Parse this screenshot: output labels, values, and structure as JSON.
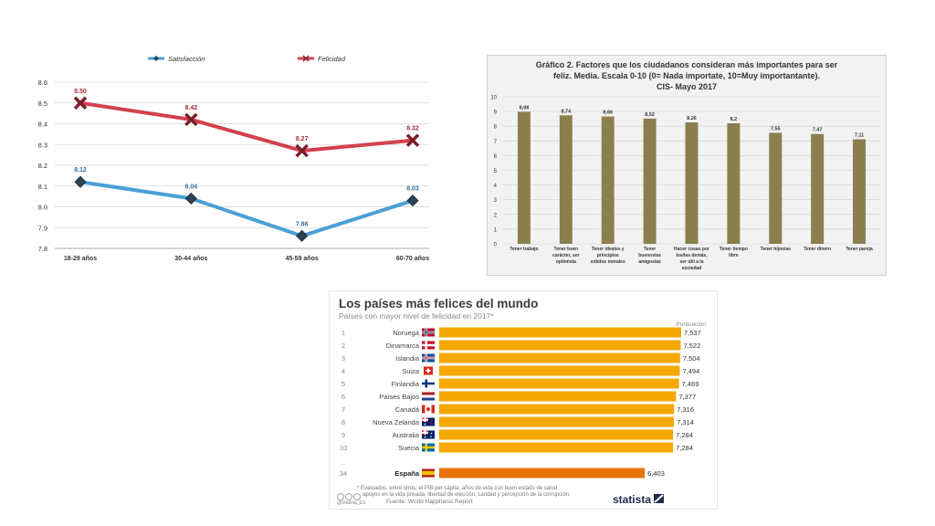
{
  "chart_data": [
    {
      "type": "line",
      "categories": [
        "18-29 años",
        "30-44 años",
        "45-59 años",
        "60-70 años"
      ],
      "series": [
        {
          "name": "Satisfacción",
          "values": [
            8.12,
            8.04,
            7.86,
            8.03
          ],
          "color": "#4a9fd6",
          "labels": [
            "8.12",
            "8.04",
            "7.86",
            "8.03"
          ]
        },
        {
          "name": "Felicidad",
          "values": [
            8.5,
            8.42,
            8.27,
            8.32
          ],
          "color": "#d2414c",
          "labels": [
            "8.50",
            "8.42",
            "8.27",
            "8.32"
          ]
        }
      ],
      "y_ticks": [
        "7.8",
        "7.9",
        "8.0",
        "8.1",
        "8.2",
        "8.3",
        "8.4",
        "8.5",
        "8.6"
      ],
      "ylim": [
        7.8,
        8.6
      ],
      "grid": true,
      "legend_position": "top",
      "title": "",
      "xlabel": "",
      "ylabel": ""
    },
    {
      "type": "bar",
      "title_lines": [
        "Gráfico 2. Factores que los ciudadanos consideran más importantes para ser",
        "feliz.  Media. Escala 0-10 (0= Nada importate, 10=Muy importantante).",
        "CIS- Mayo 2017"
      ],
      "categories": [
        [
          "Tener trabajo"
        ],
        [
          "Tener buen",
          "carácter, ser",
          "optimista"
        ],
        [
          "Tener ideales y",
          "principios",
          "sólidos morales"
        ],
        [
          "Tener",
          "buenos/as",
          "amigos/as"
        ],
        [
          "Hacer cosas por",
          "los/las demás,",
          "ser útil a la",
          "sociedad"
        ],
        [
          "Tener tiempo",
          "libre"
        ],
        [
          "Tener hijos/as"
        ],
        [
          "Tener dinero"
        ],
        [
          "Tener pareja"
        ]
      ],
      "values": [
        8.98,
        8.74,
        8.66,
        8.52,
        8.26,
        8.2,
        7.55,
        7.47,
        7.11
      ],
      "value_labels": [
        "8,98",
        "8,74",
        "8,66",
        "8,52",
        "8,26",
        "8,2",
        "7,55",
        "7,47",
        "7,11"
      ],
      "y_ticks": [
        "0",
        "1",
        "2",
        "3",
        "4",
        "5",
        "6",
        "7",
        "8",
        "9",
        "10"
      ],
      "ylim": [
        0,
        10
      ],
      "bar_color": "#8c7f4e",
      "grid": true
    },
    {
      "type": "bar",
      "orientation": "horizontal",
      "title": "Los países más felices del mundo",
      "subtitle": "Países con mayor nivel de felicidad en 2017*",
      "value_header": "Puntuación",
      "rows": [
        {
          "rank": "1",
          "country": "Noruega",
          "value": 7.537,
          "label": "7,537",
          "flag": "norway-flag"
        },
        {
          "rank": "2",
          "country": "Dinamarca",
          "value": 7.522,
          "label": "7,522",
          "flag": "denmark-flag"
        },
        {
          "rank": "3",
          "country": "Islandia",
          "value": 7.504,
          "label": "7,504",
          "flag": "iceland-flag"
        },
        {
          "rank": "4",
          "country": "Suiza",
          "value": 7.494,
          "label": "7,494",
          "flag": "switzerland-flag"
        },
        {
          "rank": "5",
          "country": "Finlandia",
          "value": 7.469,
          "label": "7,469",
          "flag": "finland-flag"
        },
        {
          "rank": "6",
          "country": "Países Bajos",
          "value": 7.377,
          "label": "7,377",
          "flag": "netherlands-flag"
        },
        {
          "rank": "7",
          "country": "Canadá",
          "value": 7.316,
          "label": "7,316",
          "flag": "canada-flag"
        },
        {
          "rank": "8",
          "country": "Nueva Zelanda",
          "value": 7.314,
          "label": "7,314",
          "flag": "new-zealand-flag"
        },
        {
          "rank": "9",
          "country": "Australia",
          "value": 7.284,
          "label": "7,284",
          "flag": "australia-flag"
        },
        {
          "rank": "10",
          "country": "Suecia",
          "value": 7.284,
          "label": "7,284",
          "flag": "sweden-flag"
        },
        {
          "rank": "34",
          "country": "España",
          "value": 6.403,
          "label": "6,403",
          "flag": "spain-flag",
          "highlight": true
        }
      ],
      "ellipsis": "...",
      "footnote_lines": [
        "* Evaluados, entre otros, el PIB per cápita, años de vida con buen estado de salud,",
        "apoyos en la vida privada, libertad de elección, caridad y percepción de la corrupción."
      ],
      "handle": "@Statista_ES",
      "source": "Fuente: World Happiness Report",
      "brand": "statista",
      "bar_color": "#f5a800",
      "highlight_color": "#e7720c",
      "colors": {
        "title": "#3b3b3b",
        "subtitle": "#8a8a8a"
      }
    }
  ]
}
